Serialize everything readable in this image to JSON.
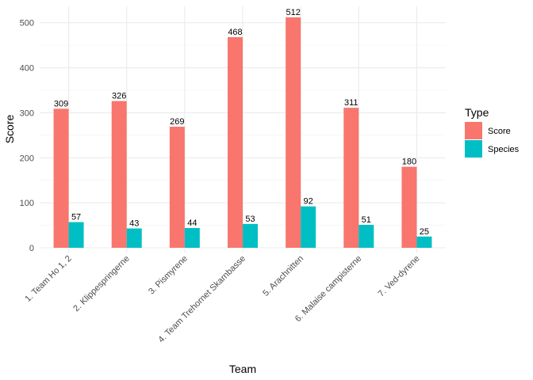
{
  "chart_data": {
    "type": "bar",
    "xlabel": "Team",
    "ylabel": "Score",
    "ylim": [
      0,
      540
    ],
    "yticks": [
      0,
      100,
      200,
      300,
      400,
      500
    ],
    "grid": true,
    "legend_position": "right",
    "legend_title": "Type",
    "categories": [
      "1. Team Ho 1, 2",
      "2. Klippespringerne",
      "3. Pismyrene",
      "4. Team Trehornet Skarnbasse",
      "5. Arachnitten",
      "6. Malaise campisterne",
      "7. Ved-dyrene"
    ],
    "series": [
      {
        "name": "Score",
        "color": "#F8766D",
        "values": [
          309,
          326,
          269,
          468,
          512,
          311,
          180
        ]
      },
      {
        "name": "Species",
        "color": "#00BFC4",
        "values": [
          57,
          43,
          44,
          53,
          92,
          51,
          25
        ]
      }
    ]
  }
}
